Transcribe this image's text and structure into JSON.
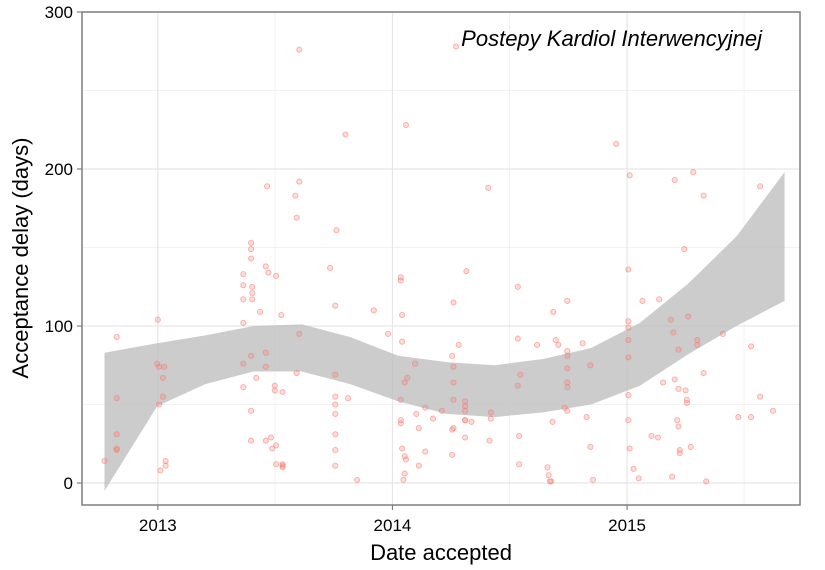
{
  "chart_data": {
    "type": "scatter",
    "title": "",
    "annotation": "Postepy Kardiol Interwencyjnej",
    "xlabel": "Date accepted",
    "ylabel": "Acceptance delay (days)",
    "xlim": [
      "2012-09-05",
      "2015-09-27"
    ],
    "ylim": [
      -14,
      300
    ],
    "x_ticks": [
      "2013",
      "2014",
      "2015"
    ],
    "x_tick_dates": [
      "2013-01-01",
      "2014-01-01",
      "2015-01-01"
    ],
    "y_ticks": [
      0,
      100,
      200,
      300
    ],
    "grid": true,
    "point_color": "#f8766d",
    "ribbon_color": "#bfbfbf",
    "points": [
      [
        "2012-10-10",
        14
      ],
      [
        "2012-10-29",
        93
      ],
      [
        "2012-10-29",
        54
      ],
      [
        "2012-10-29",
        31
      ],
      [
        "2012-10-29",
        22
      ],
      [
        "2012-10-29",
        21
      ],
      [
        "2012-12-31",
        76
      ],
      [
        "2013-01-01",
        104
      ],
      [
        "2013-01-03",
        74
      ],
      [
        "2013-01-03",
        50
      ],
      [
        "2013-01-05",
        8
      ],
      [
        "2013-01-09",
        55
      ],
      [
        "2013-01-09",
        67
      ],
      [
        "2013-01-13",
        14
      ],
      [
        "2013-01-13",
        11
      ],
      [
        "2013-01-11",
        74
      ],
      [
        "2013-05-14",
        133
      ],
      [
        "2013-05-14",
        126
      ],
      [
        "2013-05-14",
        117
      ],
      [
        "2013-05-14",
        102
      ],
      [
        "2013-05-14",
        76
      ],
      [
        "2013-05-14",
        61
      ],
      [
        "2013-05-26",
        153
      ],
      [
        "2013-05-26",
        149
      ],
      [
        "2013-05-26",
        143
      ],
      [
        "2013-05-28",
        125
      ],
      [
        "2013-05-28",
        121
      ],
      [
        "2013-05-28",
        117
      ],
      [
        "2013-05-26",
        81
      ],
      [
        "2013-05-26",
        46
      ],
      [
        "2013-05-26",
        27
      ],
      [
        "2013-06-03",
        67
      ],
      [
        "2013-06-09",
        109
      ],
      [
        "2013-06-20",
        189
      ],
      [
        "2013-06-18",
        138
      ],
      [
        "2013-06-22",
        134
      ],
      [
        "2013-06-18",
        83
      ],
      [
        "2013-06-18",
        74
      ],
      [
        "2013-06-26",
        29
      ],
      [
        "2013-06-18",
        27
      ],
      [
        "2013-07-04",
        132
      ],
      [
        "2013-07-02",
        62
      ],
      [
        "2013-07-02",
        59
      ],
      [
        "2013-06-28",
        22
      ],
      [
        "2013-07-04",
        24
      ],
      [
        "2013-07-04",
        12
      ],
      [
        "2013-07-12",
        107
      ],
      [
        "2013-07-14",
        58
      ],
      [
        "2013-07-14",
        12
      ],
      [
        "2013-07-14",
        11
      ],
      [
        "2013-07-14",
        10
      ],
      [
        "2013-08-09",
        276
      ],
      [
        "2013-08-09",
        192
      ],
      [
        "2013-08-03",
        183
      ],
      [
        "2013-08-05",
        169
      ],
      [
        "2013-08-09",
        95
      ],
      [
        "2013-08-05",
        70
      ],
      [
        "2013-09-26",
        137
      ],
      [
        "2013-10-06",
        161
      ],
      [
        "2013-10-04",
        113
      ],
      [
        "2013-10-04",
        69
      ],
      [
        "2013-10-04",
        55
      ],
      [
        "2013-10-04",
        50
      ],
      [
        "2013-10-04",
        44
      ],
      [
        "2013-10-04",
        31
      ],
      [
        "2013-10-04",
        21
      ],
      [
        "2013-10-04",
        11
      ],
      [
        "2013-10-20",
        222
      ],
      [
        "2013-10-24",
        54
      ],
      [
        "2013-11-07",
        2
      ],
      [
        "2013-12-03",
        110
      ],
      [
        "2013-12-25",
        95
      ],
      [
        "2014-01-22",
        228
      ],
      [
        "2014-01-14",
        131
      ],
      [
        "2014-01-14",
        129
      ],
      [
        "2014-01-16",
        107
      ],
      [
        "2014-01-16",
        90
      ],
      [
        "2014-01-20",
        64
      ],
      [
        "2014-01-24",
        67
      ],
      [
        "2014-01-14",
        53
      ],
      [
        "2014-01-14",
        40
      ],
      [
        "2014-01-14",
        38
      ],
      [
        "2014-01-16",
        22
      ],
      [
        "2014-01-20",
        17
      ],
      [
        "2014-01-22",
        15
      ],
      [
        "2014-01-20",
        6
      ],
      [
        "2014-01-18",
        2
      ],
      [
        "2014-02-07",
        44
      ],
      [
        "2014-02-05",
        76
      ],
      [
        "2014-02-11",
        11
      ],
      [
        "2014-02-11",
        35
      ],
      [
        "2014-02-21",
        48
      ],
      [
        "2014-02-21",
        20
      ],
      [
        "2014-03-05",
        41
      ],
      [
        "2014-03-19",
        46
      ],
      [
        "2014-04-06",
        115
      ],
      [
        "2014-04-10",
        278
      ],
      [
        "2014-04-04",
        81
      ],
      [
        "2014-04-06",
        74
      ],
      [
        "2014-04-06",
        64
      ],
      [
        "2014-04-06",
        53
      ],
      [
        "2014-04-06",
        35
      ],
      [
        "2014-04-04",
        34
      ],
      [
        "2014-04-04",
        18
      ],
      [
        "2014-04-14",
        88
      ],
      [
        "2014-04-26",
        135
      ],
      [
        "2014-04-24",
        52
      ],
      [
        "2014-04-24",
        49
      ],
      [
        "2014-04-24",
        46
      ],
      [
        "2014-04-24",
        40
      ],
      [
        "2014-04-24",
        29
      ],
      [
        "2014-04-24",
        40
      ],
      [
        "2014-05-04",
        39
      ],
      [
        "2014-05-30",
        188
      ],
      [
        "2014-06-03",
        45
      ],
      [
        "2014-06-01",
        27
      ],
      [
        "2014-06-03",
        41
      ],
      [
        "2014-07-15",
        125
      ],
      [
        "2014-07-15",
        92
      ],
      [
        "2014-07-19",
        69
      ],
      [
        "2014-07-15",
        62
      ],
      [
        "2014-07-17",
        30
      ],
      [
        "2014-07-17",
        12
      ],
      [
        "2014-08-14",
        88
      ],
      [
        "2014-08-30",
        10
      ],
      [
        "2014-09-01",
        5
      ],
      [
        "2014-09-03",
        1
      ],
      [
        "2014-09-05",
        1
      ],
      [
        "2014-09-07",
        39
      ],
      [
        "2014-09-08",
        109
      ],
      [
        "2014-09-12",
        91
      ],
      [
        "2014-09-16",
        88
      ],
      [
        "2014-09-30",
        116
      ],
      [
        "2014-09-30",
        84
      ],
      [
        "2014-09-30",
        81
      ],
      [
        "2014-09-30",
        73
      ],
      [
        "2014-09-30",
        64
      ],
      [
        "2014-09-30",
        61
      ],
      [
        "2014-09-26",
        48
      ],
      [
        "2014-09-30",
        46
      ],
      [
        "2014-10-24",
        89
      ],
      [
        "2014-11-05",
        75
      ],
      [
        "2014-10-30",
        42
      ],
      [
        "2014-11-05",
        23
      ],
      [
        "2014-11-09",
        2
      ],
      [
        "2014-12-15",
        216
      ],
      [
        "2015-01-05",
        196
      ],
      [
        "2015-01-03",
        136
      ],
      [
        "2015-01-03",
        103
      ],
      [
        "2015-01-03",
        99
      ],
      [
        "2015-01-03",
        91
      ],
      [
        "2015-01-03",
        80
      ],
      [
        "2015-01-03",
        56
      ],
      [
        "2015-01-03",
        40
      ],
      [
        "2015-01-05",
        22
      ],
      [
        "2015-01-11",
        9
      ],
      [
        "2015-01-19",
        3
      ],
      [
        "2015-01-25",
        116
      ],
      [
        "2015-02-08",
        30
      ],
      [
        "2015-02-18",
        29
      ],
      [
        "2015-02-20",
        117
      ],
      [
        "2015-02-26",
        64
      ],
      [
        "2015-03-10",
        104
      ],
      [
        "2015-03-14",
        96
      ],
      [
        "2015-03-16",
        193
      ],
      [
        "2015-03-16",
        66
      ],
      [
        "2015-03-12",
        4
      ],
      [
        "2015-03-22",
        85
      ],
      [
        "2015-03-22",
        60
      ],
      [
        "2015-03-22",
        36
      ],
      [
        "2015-03-20",
        40
      ],
      [
        "2015-03-24",
        21
      ],
      [
        "2015-03-24",
        19
      ],
      [
        "2015-03-31",
        149
      ],
      [
        "2015-04-06",
        106
      ],
      [
        "2015-04-02",
        59
      ],
      [
        "2015-04-04",
        51
      ],
      [
        "2015-04-04",
        53
      ],
      [
        "2015-04-10",
        23
      ],
      [
        "2015-04-14",
        198
      ],
      [
        "2015-04-20",
        91
      ],
      [
        "2015-04-20",
        88
      ],
      [
        "2015-04-30",
        183
      ],
      [
        "2015-04-30",
        70
      ],
      [
        "2015-05-04",
        1
      ],
      [
        "2015-05-30",
        95
      ],
      [
        "2015-06-23",
        42
      ],
      [
        "2015-07-13",
        87
      ],
      [
        "2015-07-13",
        42
      ],
      [
        "2015-07-27",
        189
      ],
      [
        "2015-07-27",
        55
      ],
      [
        "2015-08-16",
        46
      ]
    ],
    "smooth_band": {
      "x": [
        "2012-10-10",
        "2012-12-31",
        "2013-03-16",
        "2013-05-30",
        "2013-08-13",
        "2013-10-27",
        "2014-01-10",
        "2014-03-26",
        "2014-06-09",
        "2014-08-23",
        "2014-11-06",
        "2015-01-21",
        "2015-04-06",
        "2015-06-20",
        "2015-09-03"
      ],
      "lower": [
        -5,
        49,
        63,
        71,
        71,
        63,
        52,
        44,
        42,
        45,
        50,
        62,
        82,
        100,
        116
      ],
      "upper": [
        83,
        89,
        94,
        100,
        101,
        93,
        81,
        77,
        75,
        79,
        86,
        102,
        127,
        157,
        198
      ]
    }
  }
}
